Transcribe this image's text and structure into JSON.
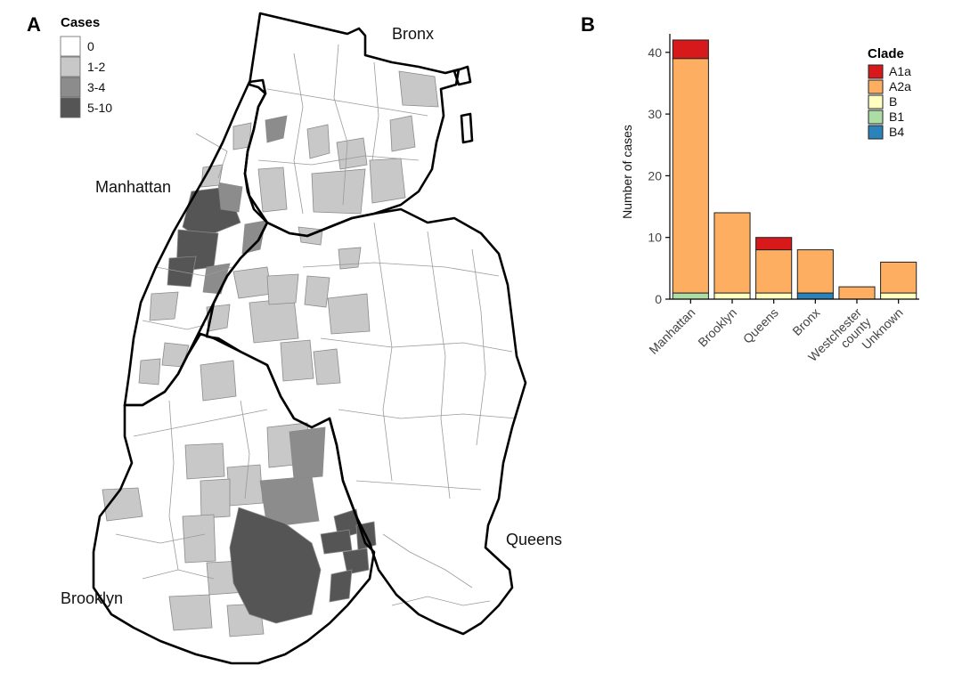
{
  "panel_a": {
    "letter": "A",
    "legend": {
      "title": "Cases",
      "items": [
        {
          "label": "0",
          "color": "#ffffff"
        },
        {
          "label": "1-2",
          "color": "#c8c8c8"
        },
        {
          "label": "3-4",
          "color": "#8c8c8c"
        },
        {
          "label": "5-10",
          "color": "#555555"
        }
      ]
    },
    "boroughs": [
      "Bronx",
      "Manhattan",
      "Queens",
      "Brooklyn"
    ]
  },
  "chart_data": {
    "type": "bar",
    "stacked": true,
    "panel_letter": "B",
    "categories": [
      "Manhattan",
      "Brooklyn",
      "Queens",
      "Bronx",
      "Westchester county",
      "Unknown"
    ],
    "category_lines": [
      [
        "Manhattan"
      ],
      [
        "Brooklyn"
      ],
      [
        "Queens"
      ],
      [
        "Bronx"
      ],
      [
        "Westchester",
        "county"
      ],
      [
        "Unknown"
      ]
    ],
    "series": [
      {
        "name": "A1a",
        "color": "#d7191c",
        "values": [
          3,
          0,
          2,
          0,
          0,
          0
        ]
      },
      {
        "name": "A2a",
        "color": "#fdae61",
        "values": [
          38,
          13,
          7,
          7,
          2,
          5
        ]
      },
      {
        "name": "B",
        "color": "#ffffbf",
        "values": [
          0,
          1,
          1,
          0,
          0,
          1
        ]
      },
      {
        "name": "B1",
        "color": "#abdda4",
        "values": [
          1,
          0,
          0,
          0,
          0,
          0
        ]
      },
      {
        "name": "B4",
        "color": "#2b83ba",
        "values": [
          0,
          0,
          0,
          1,
          0,
          0
        ]
      }
    ],
    "stack_order": [
      "B4",
      "B1",
      "B",
      "A2a",
      "A1a"
    ],
    "ylabel": "Number of cases",
    "xlabel": "",
    "ylim": [
      0,
      43
    ],
    "yticks": [
      0,
      10,
      20,
      30,
      40
    ],
    "legend_title": "Clade",
    "legend_position": "top-right",
    "grid": false
  }
}
